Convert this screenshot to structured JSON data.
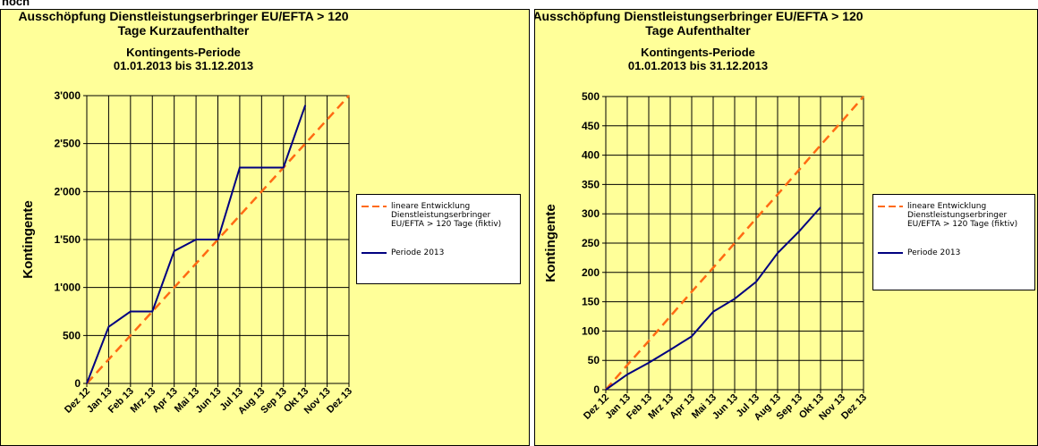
{
  "page_label": "noch",
  "chart_data": [
    {
      "type": "line",
      "title": [
        "Ausschöpfung Dienstleistungserbringer EU/EFTA > 120",
        "Tage Kurzaufenthalter"
      ],
      "subtitle": [
        "Kontingents-Periode",
        "01.01.2013 bis 31.12.2013"
      ],
      "y_label": "Kontingente",
      "categories": [
        "Dez 12",
        "Jan 13",
        "Feb 13",
        "Mrz 13",
        "Apr 13",
        "Mai 13",
        "Jun 13",
        "Jul 13",
        "Aug 13",
        "Sep 13",
        "Okt 13",
        "Nov 13",
        "Dez 13"
      ],
      "ylim": [
        0,
        3000
      ],
      "yticks": [
        0,
        500,
        {
          "value": 1000,
          "label": "1'000"
        },
        {
          "value": 1500,
          "label": "1'500"
        },
        {
          "value": 2000,
          "label": "2'000"
        },
        {
          "value": 2500,
          "label": "2'500"
        },
        {
          "value": 3000,
          "label": "3'000"
        }
      ],
      "grid": true,
      "series": [
        {
          "name": "lineare Entwicklung Dienstleistungserbringer EU/EFTA > 120 Tage (fiktiv)",
          "color": "#ff6a13",
          "dashed": true,
          "values": [
            0,
            250,
            500,
            750,
            1000,
            1250,
            1500,
            1750,
            2000,
            2250,
            2500,
            2750,
            3000
          ]
        },
        {
          "name": "Periode 2013",
          "color": "#000080",
          "dashed": false,
          "values": [
            0,
            590,
            750,
            750,
            1380,
            1500,
            1500,
            2250,
            2250,
            2250,
            2900,
            null,
            null
          ]
        }
      ]
    },
    {
      "type": "line",
      "title": [
        "Ausschöpfung Dienstleistungserbringer EU/EFTA > 120",
        "Tage Aufenthalter"
      ],
      "subtitle": [
        "Kontingents-Periode",
        "01.01.2013 bis 31.12.2013"
      ],
      "y_label": "Kontingente",
      "categories": [
        "Dez 12",
        "Jan 13",
        "Feb 13",
        "Mrz 13",
        "Apr 13",
        "Mai 13",
        "Jun 13",
        "Jul 13",
        "Aug 13",
        "Sep 13",
        "Okt 13",
        "Nov 13",
        "Dez 13"
      ],
      "ylim": [
        0,
        500
      ],
      "yticks": [
        0,
        50,
        100,
        150,
        200,
        250,
        300,
        350,
        400,
        450,
        500
      ],
      "grid": true,
      "series": [
        {
          "name": "lineare Entwicklung Dienstleistungserbringer EU/EFTA > 120 Tage (fiktiv)",
          "color": "#ff6a13",
          "dashed": true,
          "values": [
            0,
            42,
            83,
            125,
            167,
            208,
            250,
            292,
            333,
            375,
            417,
            458,
            500
          ]
        },
        {
          "name": "Periode 2013",
          "color": "#000080",
          "dashed": false,
          "values": [
            0,
            26,
            46,
            68,
            91,
            133,
            155,
            184,
            233,
            270,
            311,
            null,
            null
          ]
        }
      ]
    }
  ]
}
